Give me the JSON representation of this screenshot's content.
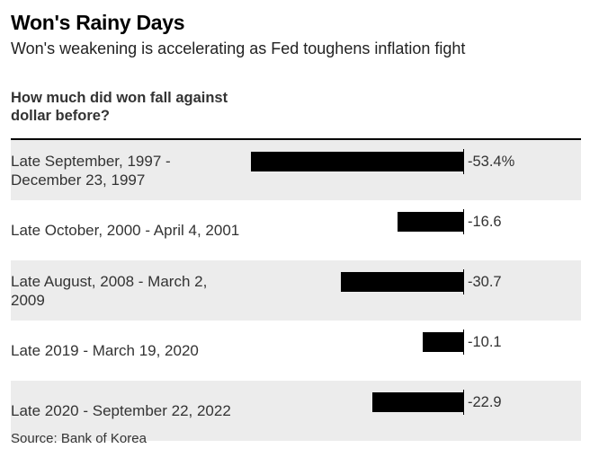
{
  "chart_data": {
    "type": "bar",
    "orientation": "horizontal",
    "title": "Won's Rainy Days",
    "subtitle": "Won's weakening is accelerating as Fed toughens inflation fight",
    "column_header": "How much did won fall against dollar before?",
    "categories": [
      "Late September, 1997 - December 23, 1997",
      "Late October, 2000 - April 4, 2001",
      "Late August, 2008 - March 2, 2009",
      "Late 2019 - March 19, 2020",
      "Late 2020 - September 22, 2022"
    ],
    "values": [
      -53.4,
      -16.6,
      -30.7,
      -10.1,
      -22.9
    ],
    "value_labels": [
      "-53.4%",
      "-16.6",
      "-30.7",
      "-10.1",
      "-22.9"
    ],
    "xlim": [
      -53.4,
      0
    ],
    "bar_color": "#000000",
    "source": "Source: Bank of Korea"
  }
}
